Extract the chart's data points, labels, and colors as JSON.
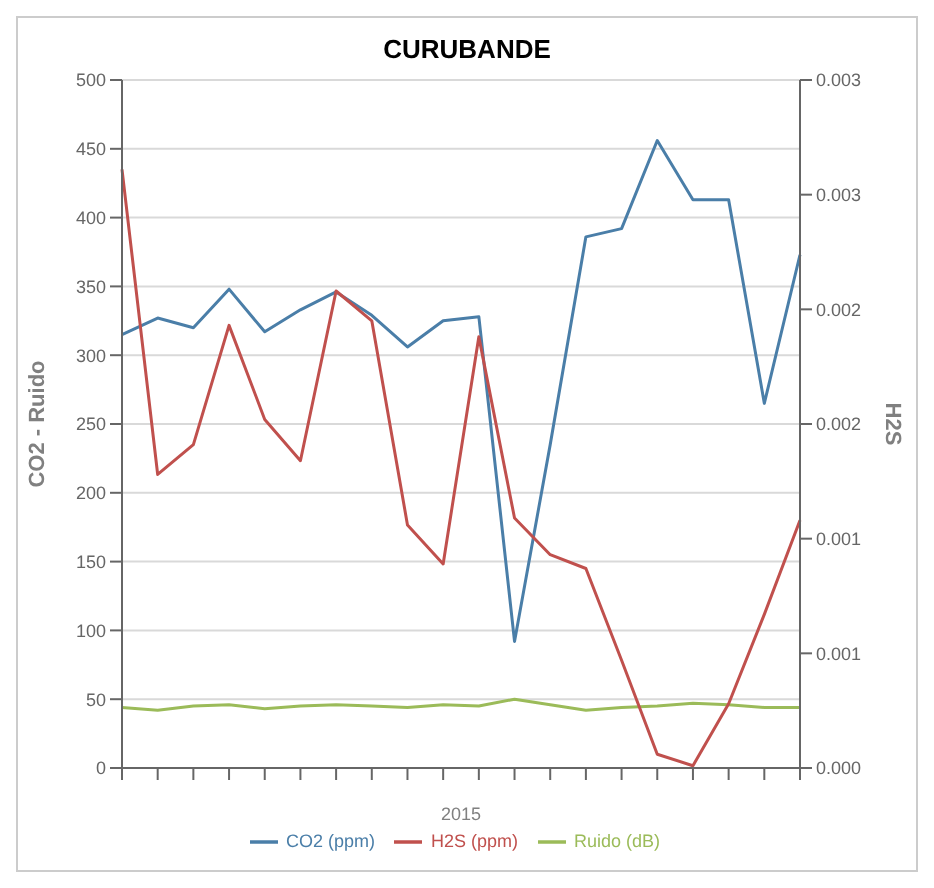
{
  "chart_data": {
    "type": "line",
    "title": "CURUBANDE",
    "xlabel": "2015",
    "ylabel": "CO2 - Ruido",
    "y2label": "H2S",
    "categories": [
      null,
      null,
      null,
      null,
      null,
      null,
      null,
      null,
      null,
      null,
      null,
      null,
      null,
      null,
      null,
      null,
      null,
      null,
      null,
      null
    ],
    "series": [
      {
        "name": "CO2 (ppm)",
        "color": "#4a7ea8",
        "values": [
          315,
          327,
          320,
          348,
          317,
          333,
          346,
          329,
          306,
          325,
          328,
          92,
          235,
          386,
          392,
          456,
          413,
          413,
          265,
          373
        ]
      },
      {
        "name": "Ruido (dB)",
        "color": "#9bbb59",
        "values": [
          44,
          42,
          45,
          46,
          43,
          45,
          46,
          45,
          44,
          46,
          45,
          50,
          46,
          42,
          44,
          45,
          47,
          46,
          44,
          44
        ]
      },
      {
        "name": "H2S (ppm)",
        "color": "#c0504d",
        "axis": "y2",
        "values": [
          0.00261,
          0.00128,
          0.00141,
          0.00193,
          0.00152,
          0.00134,
          0.00208,
          0.00195,
          0.00106,
          0.00089,
          0.00188,
          0.00109,
          0.00093,
          0.00087,
          0.00047,
          6e-05,
          1e-05,
          0.00028,
          0.00067,
          0.00108
        ]
      }
    ],
    "ylim": [
      0,
      500
    ],
    "yticks": [
      0,
      50,
      100,
      150,
      200,
      250,
      300,
      350,
      400,
      450,
      500
    ],
    "y2lim": [
      0,
      0.003
    ],
    "y2ticks": [
      {
        "value": 0,
        "label": "0.000"
      },
      {
        "value": 0.0005,
        "label": "0.001"
      },
      {
        "value": 0.001,
        "label": "0.001"
      },
      {
        "value": 0.0015,
        "label": "0.002"
      },
      {
        "value": 0.002,
        "label": "0.002"
      },
      {
        "value": 0.0025,
        "label": "0.003"
      },
      {
        "value": 0.003,
        "label": "0.003"
      }
    ],
    "grid": "y",
    "legend": "bottom",
    "marker": "none",
    "line_style": "solid"
  }
}
